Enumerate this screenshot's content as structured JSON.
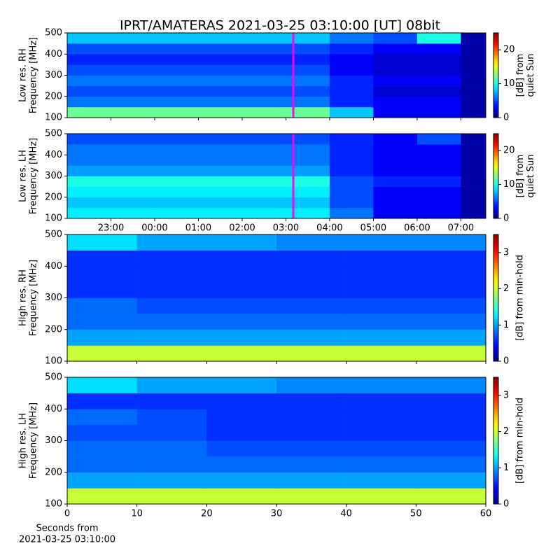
{
  "figure": {
    "title": "IPRT/AMATERAS 2021-03-25 03:10:00 [UT]   08bit"
  },
  "chart_data": [
    {
      "type": "spectrogram",
      "colormap": "jet",
      "ylabel": [
        "Low res. RH",
        "Frequency [MHz]"
      ],
      "x_edges": [
        22,
        23,
        24,
        25,
        26,
        27,
        28,
        29,
        30,
        31,
        31.57
      ],
      "y_edges": [
        100,
        150,
        200,
        250,
        300,
        350,
        400,
        450,
        500
      ],
      "values": [
        [
          12,
          12,
          12,
          12,
          12,
          12,
          8,
          3,
          3,
          1
        ],
        [
          6,
          6,
          6,
          6,
          6,
          6,
          4,
          3,
          3,
          1
        ],
        [
          5,
          5,
          5,
          5,
          5,
          5,
          4,
          2,
          2,
          1
        ],
        [
          6,
          6,
          6,
          6,
          6,
          6,
          4,
          3,
          3,
          1
        ],
        [
          5,
          5,
          5,
          5,
          5,
          5,
          3,
          2,
          2,
          1
        ],
        [
          4,
          4,
          4,
          4,
          4,
          4,
          3,
          2,
          2,
          1
        ],
        [
          5,
          5,
          5,
          5,
          5,
          5,
          4,
          3,
          3,
          1
        ],
        [
          8,
          8,
          8,
          8,
          8,
          8,
          6,
          5,
          10,
          1
        ]
      ],
      "xlim": [
        22,
        31.57
      ],
      "ylim": [
        100,
        500
      ],
      "yticks": [
        100,
        200,
        300,
        400,
        500
      ],
      "xticks": [
        23,
        24,
        25,
        26,
        27,
        28,
        29,
        30,
        31
      ],
      "vline": 27.17,
      "vline_color": "#ff00ff",
      "clim": [
        0,
        25
      ],
      "cticks": [
        0,
        10,
        20
      ],
      "colorbar_label": [
        "[dB] from",
        "quiet Sun"
      ]
    },
    {
      "type": "spectrogram",
      "colormap": "jet",
      "ylabel": [
        "Low res. LH",
        "Frequency [MHz]"
      ],
      "x_edges": [
        22,
        23,
        24,
        25,
        26,
        27,
        28,
        29,
        30,
        31,
        31.57
      ],
      "y_edges": [
        100,
        150,
        200,
        250,
        300,
        350,
        400,
        450,
        500
      ],
      "values": [
        [
          9,
          9,
          9,
          9,
          9,
          9,
          6,
          3,
          3,
          1
        ],
        [
          8,
          8,
          8,
          8,
          8,
          8,
          5,
          3,
          3,
          1
        ],
        [
          9,
          9,
          9,
          9,
          9,
          9,
          5,
          3,
          3,
          1
        ],
        [
          10,
          10,
          10,
          10,
          10,
          10,
          5,
          4,
          4,
          1
        ],
        [
          7,
          7,
          7,
          7,
          7,
          7,
          4,
          3,
          3,
          1
        ],
        [
          6,
          6,
          6,
          6,
          6,
          6,
          4,
          3,
          3,
          1
        ],
        [
          6,
          6,
          6,
          6,
          6,
          6,
          4,
          3,
          3,
          1
        ],
        [
          5,
          5,
          5,
          5,
          5,
          5,
          4,
          3,
          5,
          1
        ]
      ],
      "xlim": [
        22,
        31.57
      ],
      "ylim": [
        100,
        500
      ],
      "yticks": [
        100,
        200,
        300,
        400,
        500
      ],
      "xticks": [
        {
          "value": 23,
          "label": "23:00"
        },
        {
          "value": 24,
          "label": "00:00"
        },
        {
          "value": 25,
          "label": "01:00"
        },
        {
          "value": 26,
          "label": "02:00"
        },
        {
          "value": 27,
          "label": "03:00"
        },
        {
          "value": 28,
          "label": "04:00"
        },
        {
          "value": 29,
          "label": "05:00"
        },
        {
          "value": 30,
          "label": "06:00"
        },
        {
          "value": 31,
          "label": "07:00"
        }
      ],
      "xtick_labels": true,
      "vline": 27.17,
      "vline_color": "#ff00ff",
      "clim": [
        0,
        25
      ],
      "cticks": [
        0,
        10,
        20
      ],
      "colorbar_label": [
        "[dB] from",
        "quiet Sun"
      ]
    },
    {
      "type": "spectrogram",
      "colormap": "jet",
      "ylabel": [
        "High res. RH",
        "Frequency [MHz]"
      ],
      "x_edges": [
        0,
        10,
        20,
        30,
        40,
        50,
        60
      ],
      "y_edges": [
        100,
        150,
        200,
        250,
        300,
        350,
        400,
        450,
        500
      ],
      "values": [
        [
          2,
          2,
          2,
          2,
          2,
          2
        ],
        [
          1,
          1,
          1,
          1,
          1,
          1
        ],
        [
          0.8,
          0.8,
          0.8,
          0.8,
          0.8,
          0.8
        ],
        [
          0.8,
          0.7,
          0.7,
          0.7,
          0.7,
          0.7
        ],
        [
          0.6,
          0.6,
          0.6,
          0.6,
          0.6,
          0.6
        ],
        [
          0.6,
          0.6,
          0.6,
          0.6,
          0.6,
          0.6
        ],
        [
          0.6,
          0.6,
          0.6,
          0.6,
          0.6,
          0.6
        ],
        [
          1.2,
          1,
          1,
          0.9,
          0.9,
          0.9
        ]
      ],
      "xlim": [
        0,
        60
      ],
      "ylim": [
        100,
        500
      ],
      "yticks": [
        100,
        200,
        300,
        400,
        500
      ],
      "xticks": [
        0,
        10,
        20,
        30,
        40,
        50,
        60
      ],
      "clim": [
        0,
        3.5
      ],
      "cticks": [
        0,
        1,
        2,
        3
      ],
      "colorbar_label": [
        "[dB] from min-hold"
      ]
    },
    {
      "type": "spectrogram",
      "colormap": "jet",
      "ylabel": [
        "High res. LH",
        "Frequency [MHz]"
      ],
      "x_edges": [
        0,
        10,
        20,
        30,
        40,
        50,
        60
      ],
      "y_edges": [
        100,
        150,
        200,
        250,
        300,
        350,
        400,
        450,
        500
      ],
      "values": [
        [
          2,
          2,
          2,
          2,
          2,
          2
        ],
        [
          1,
          1,
          1,
          1,
          1,
          1
        ],
        [
          0.8,
          0.8,
          0.8,
          0.8,
          0.8,
          0.8
        ],
        [
          0.8,
          0.8,
          0.7,
          0.7,
          0.7,
          0.7
        ],
        [
          0.7,
          0.7,
          0.6,
          0.6,
          0.6,
          0.6
        ],
        [
          0.8,
          0.7,
          0.6,
          0.6,
          0.6,
          0.6
        ],
        [
          0.6,
          0.6,
          0.6,
          0.6,
          0.6,
          0.6
        ],
        [
          1.2,
          1,
          1,
          0.9,
          0.9,
          0.9
        ]
      ],
      "xlim": [
        0,
        60
      ],
      "ylim": [
        100,
        500
      ],
      "yticks": [
        100,
        200,
        300,
        400,
        500
      ],
      "xticks": [
        0,
        10,
        20,
        30,
        40,
        50,
        60
      ],
      "xtick_labels": true,
      "xlabel": [
        "Seconds from",
        "2021-03-25 03:10:00"
      ],
      "clim": [
        0,
        3.5
      ],
      "cticks": [
        0,
        1,
        2,
        3
      ],
      "colorbar_label": [
        "[dB] from min-hold"
      ]
    }
  ]
}
